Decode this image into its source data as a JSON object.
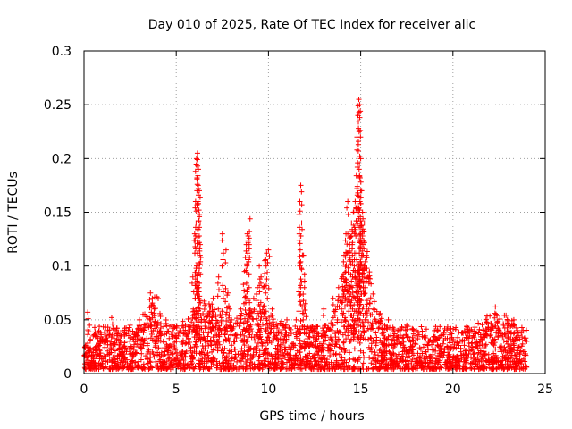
{
  "chart_data": {
    "type": "scatter",
    "title": "Day 010 of 2025, Rate Of TEC Index for receiver alic",
    "xlabel": "GPS time / hours",
    "ylabel": "ROTI / TECUs",
    "xlim": [
      0,
      25
    ],
    "ylim": [
      0,
      0.3
    ],
    "x_ticks": [
      0,
      5,
      10,
      15,
      20,
      25
    ],
    "x_tick_labels": [
      "0",
      "5",
      "10",
      "15",
      "20",
      "25"
    ],
    "y_ticks": [
      0,
      0.05,
      0.1,
      0.15,
      0.2,
      0.25,
      0.3
    ],
    "y_tick_labels": [
      "0",
      "0.05",
      "0.1",
      "0.15",
      "0.2",
      "0.25",
      "0.3"
    ],
    "grid": true,
    "marker": "+",
    "marker_color": "#ff0000",
    "series": [
      {
        "x": [
          0.2,
          0.3,
          0.5,
          1.0,
          1.5,
          1.7,
          2.0,
          2.5,
          3.0,
          3.2,
          3.6,
          3.7,
          3.8,
          4.0,
          4.3,
          5.0,
          5.5,
          5.9,
          6.0,
          6.05,
          6.1,
          6.15,
          6.2,
          6.25,
          6.3,
          6.5,
          6.8,
          7.0,
          7.3,
          7.5,
          7.7,
          7.8,
          7.9,
          8.0,
          8.5,
          8.7,
          8.8,
          8.85,
          8.9,
          9.0,
          9.2,
          9.4,
          9.5,
          9.6,
          9.7,
          9.8,
          9.9,
          10.0,
          10.2,
          10.5,
          11.0,
          11.5,
          11.7,
          11.75,
          11.8,
          11.9,
          12.0,
          12.3,
          12.5,
          13.0,
          13.5,
          13.8,
          14.0,
          14.1,
          14.2,
          14.3,
          14.4,
          14.5,
          14.6,
          14.7,
          14.8,
          14.85,
          14.9,
          14.95,
          15.0,
          15.05,
          15.1,
          15.2,
          15.3,
          15.4,
          15.5,
          15.7,
          16.0,
          16.3,
          16.5,
          17.0,
          17.5,
          18.0,
          18.5,
          19.0,
          19.5,
          20.0,
          20.5,
          21.0,
          21.5,
          22.0,
          22.3,
          22.5,
          23.0,
          23.3,
          23.5,
          23.8,
          24.0
        ],
        "y": [
          0.057,
          0.045,
          0.035,
          0.03,
          0.052,
          0.04,
          0.035,
          0.045,
          0.05,
          0.055,
          0.075,
          0.07,
          0.06,
          0.045,
          0.03,
          0.035,
          0.045,
          0.09,
          0.13,
          0.16,
          0.2,
          0.205,
          0.19,
          0.17,
          0.12,
          0.05,
          0.055,
          0.07,
          0.09,
          0.13,
          0.115,
          0.075,
          0.06,
          0.05,
          0.06,
          0.095,
          0.12,
          0.13,
          0.128,
          0.144,
          0.07,
          0.08,
          0.1,
          0.09,
          0.08,
          0.105,
          0.112,
          0.115,
          0.06,
          0.045,
          0.05,
          0.05,
          0.16,
          0.175,
          0.14,
          0.11,
          0.065,
          0.04,
          0.035,
          0.06,
          0.07,
          0.08,
          0.09,
          0.11,
          0.13,
          0.16,
          0.12,
          0.14,
          0.15,
          0.16,
          0.22,
          0.24,
          0.255,
          0.25,
          0.2,
          0.17,
          0.15,
          0.14,
          0.11,
          0.09,
          0.065,
          0.06,
          0.055,
          0.045,
          0.05,
          0.04,
          0.045,
          0.04,
          0.035,
          0.04,
          0.038,
          0.03,
          0.03,
          0.028,
          0.032,
          0.035,
          0.062,
          0.04,
          0.045,
          0.05,
          0.04,
          0.04,
          0.03
        ]
      }
    ]
  }
}
